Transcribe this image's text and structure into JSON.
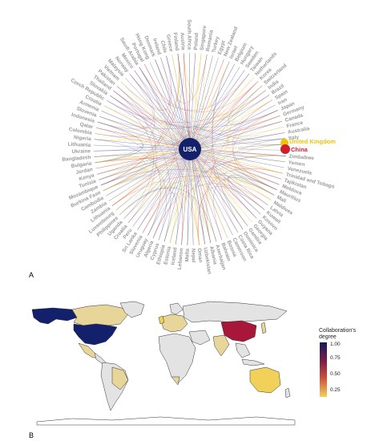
{
  "panels": {
    "a_label": "A",
    "b_label": "B"
  },
  "chart_data": [
    {
      "type": "network",
      "hub": "USA",
      "highlighted": [
        {
          "name": "United Kingdom",
          "color": "#f2c200"
        },
        {
          "name": "China",
          "color": "#cf1f2e"
        }
      ],
      "countries": [
        "United Kingdom",
        "China",
        "Zimbabwe",
        "Yemen",
        "Venezuela",
        "Trinidad and Tobago",
        "Tajikistan",
        "Moldova",
        "Mauritius",
        "Mali",
        "Maldives",
        "Latvia",
        "Kuwait",
        "Kosovo",
        "Guyana",
        "Georgia",
        "Gambia",
        "Dominica",
        "Costa Rica",
        "Cameroon",
        "Bosnia",
        "Bahrain",
        "Azerbaijan",
        "Albania",
        "Uzbekistan",
        "Oman",
        "Nepal",
        "Malta",
        "Lebanon",
        "Iceland",
        "Estonia",
        "Ethiopia",
        "Cyprus",
        "Algeria",
        "Uruguay",
        "Slovenia",
        "Sri Lanka",
        "Peru",
        "Croatia",
        "Uganda",
        "Philippines",
        "Luxembourg",
        "Lithuania",
        "Zambia",
        "Cambodia",
        "Burkina Faso",
        "Mozambique",
        "Tunisia",
        "Kenya",
        "Jordan",
        "Bulgaria",
        "Bangladesh",
        "Ukraine",
        "Lithuania",
        "Nigeria",
        "Colombia",
        "Qatar",
        "Indonesia",
        "Slovenia",
        "Armenia",
        "Croatia",
        "Czech Republic",
        "Slovakia",
        "Thailand",
        "Pakistan",
        "Vietnam",
        "Malaysia",
        "Norway",
        "Mexico",
        "Saudi Arabia",
        "Portugal",
        "Hong Kong",
        "Denmark",
        "Ireland",
        "Chile",
        "Greece",
        "Finland",
        "Austria",
        "South Africa",
        "Poland",
        "Singapore",
        "Romania",
        "Turkey",
        "Egypt",
        "New Zealand",
        "Israel",
        "Belgium",
        "Hungary",
        "Sweden",
        "Taiwan",
        "Netherlands",
        "Korea",
        "Switzerland",
        "India",
        "Brazil",
        "Spain",
        "Iran",
        "Japan",
        "Germany",
        "Canada",
        "France",
        "Australia",
        "Italy"
      ],
      "edge_colors": [
        "#2e3b87",
        "#cf1f2e",
        "#f2c200",
        "#e0c060",
        "#9bb0d0"
      ]
    },
    {
      "type": "heatmap",
      "legend": {
        "title_line1": "Collaboration's",
        "title_line2": "degree",
        "ticks": [
          "1.00",
          "0.75",
          "0.50",
          "0.25"
        ]
      },
      "colorscale": [
        "#f2d15a",
        "#c9503c",
        "#7c1f47",
        "#141a5c"
      ],
      "values": {
        "USA": 1.0,
        "China": 0.55,
        "United Kingdom": 0.3,
        "Canada": 0.25,
        "Australia": 0.27,
        "Germany": 0.2
      }
    }
  ]
}
